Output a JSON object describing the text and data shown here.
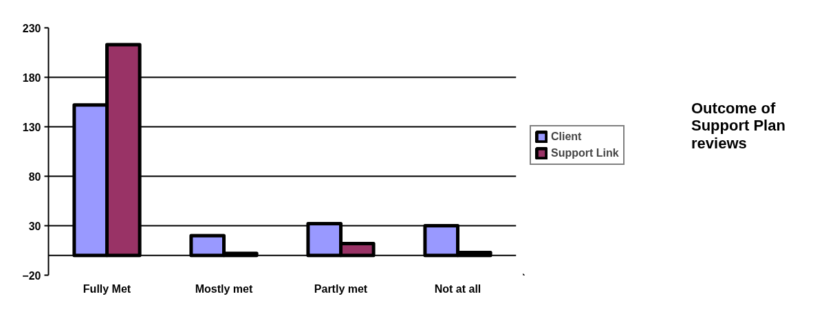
{
  "chart_data": {
    "type": "bar",
    "title": "Outcome of Support Plan reviews",
    "categories": [
      "Fully Met",
      "Mostly met",
      "Partly met",
      "Not at all"
    ],
    "series": [
      {
        "name": "Client",
        "color": "#9999ff",
        "values": [
          152,
          20,
          32,
          30
        ]
      },
      {
        "name": "Support Link",
        "color": "#993366",
        "values": [
          213,
          2,
          12,
          3
        ]
      }
    ],
    "ylim": [
      -20,
      230
    ],
    "yticks": [
      -20,
      30,
      80,
      130,
      180,
      230
    ],
    "grid": "y",
    "legend": "right"
  }
}
